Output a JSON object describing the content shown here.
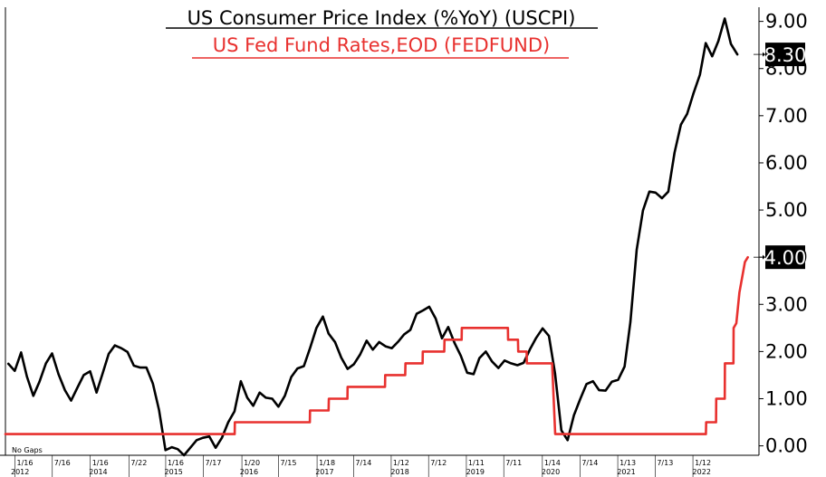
{
  "chart_data": {
    "type": "line",
    "title": "US Consumer Price Index (%YoY) (USCPI)",
    "subtitle": "US Fed Fund Rates,EOD (FEDFUND)",
    "note": "No Gaps",
    "ylim": [
      -0.2,
      9.3
    ],
    "yticks": [
      "9.00",
      "8.00",
      "7.00",
      "6.00",
      "5.00",
      "4.00",
      "3.00",
      "2.00",
      "1.00",
      "0.00"
    ],
    "x_range": [
      "2012-12-01",
      "2022-10-15"
    ],
    "x_ticks_md": [
      {
        "label": "1/16",
        "date": "2013-01-16"
      },
      {
        "label": "7/16",
        "date": "2013-07-16"
      },
      {
        "label": "1/16",
        "date": "2014-01-16"
      },
      {
        "label": "7/22",
        "date": "2014-07-22"
      },
      {
        "label": "1/16",
        "date": "2015-01-16"
      },
      {
        "label": "7/17",
        "date": "2015-07-17"
      },
      {
        "label": "1/20",
        "date": "2016-01-20"
      },
      {
        "label": "7/15",
        "date": "2016-07-15"
      },
      {
        "label": "1/18",
        "date": "2017-01-18"
      },
      {
        "label": "7/14",
        "date": "2017-07-14"
      },
      {
        "label": "1/12",
        "date": "2018-01-12"
      },
      {
        "label": "7/12",
        "date": "2018-07-12"
      },
      {
        "label": "1/11",
        "date": "2019-01-11"
      },
      {
        "label": "7/11",
        "date": "2019-07-11"
      },
      {
        "label": "1/14",
        "date": "2020-01-14"
      },
      {
        "label": "7/14",
        "date": "2020-07-14"
      },
      {
        "label": "1/13",
        "date": "2021-01-13"
      },
      {
        "label": "7/13",
        "date": "2021-07-13"
      },
      {
        "label": "1/12",
        "date": "2022-01-12"
      }
    ],
    "x_ticks_year": [
      {
        "label": "2012",
        "date": "2012-12-01"
      },
      {
        "label": "2014",
        "date": "2014-01-01"
      },
      {
        "label": "2015",
        "date": "2015-01-01"
      },
      {
        "label": "2016",
        "date": "2016-01-01"
      },
      {
        "label": "2017",
        "date": "2017-01-01"
      },
      {
        "label": "2018",
        "date": "2018-01-01"
      },
      {
        "label": "2019",
        "date": "2019-01-01"
      },
      {
        "label": "2020",
        "date": "2020-01-01"
      },
      {
        "label": "2021",
        "date": "2021-01-01"
      },
      {
        "label": "2022",
        "date": "2022-01-01"
      }
    ],
    "series": [
      {
        "name": "US Consumer Price Index (%YoY) (USCPI)",
        "color": "#000000",
        "last_label": "8.30",
        "points": [
          [
            "2012-12-15",
            1.74
          ],
          [
            "2013-01-15",
            1.59
          ],
          [
            "2013-02-15",
            1.98
          ],
          [
            "2013-03-15",
            1.47
          ],
          [
            "2013-04-15",
            1.06
          ],
          [
            "2013-05-15",
            1.36
          ],
          [
            "2013-06-15",
            1.75
          ],
          [
            "2013-07-15",
            1.96
          ],
          [
            "2013-08-15",
            1.52
          ],
          [
            "2013-09-15",
            1.18
          ],
          [
            "2013-10-15",
            0.96
          ],
          [
            "2013-11-15",
            1.24
          ],
          [
            "2013-12-15",
            1.5
          ],
          [
            "2014-01-15",
            1.58
          ],
          [
            "2014-02-15",
            1.13
          ],
          [
            "2014-03-15",
            1.51
          ],
          [
            "2014-04-15",
            1.95
          ],
          [
            "2014-05-15",
            2.13
          ],
          [
            "2014-06-15",
            2.07
          ],
          [
            "2014-07-15",
            1.99
          ],
          [
            "2014-08-15",
            1.7
          ],
          [
            "2014-09-15",
            1.66
          ],
          [
            "2014-10-15",
            1.66
          ],
          [
            "2014-11-15",
            1.32
          ],
          [
            "2014-12-15",
            0.76
          ],
          [
            "2015-01-15",
            -0.09
          ],
          [
            "2015-02-15",
            -0.03
          ],
          [
            "2015-03-15",
            -0.07
          ],
          [
            "2015-04-15",
            -0.2
          ],
          [
            "2015-05-15",
            -0.04
          ],
          [
            "2015-06-15",
            0.12
          ],
          [
            "2015-07-15",
            0.17
          ],
          [
            "2015-08-15",
            0.2
          ],
          [
            "2015-09-15",
            -0.04
          ],
          [
            "2015-10-15",
            0.17
          ],
          [
            "2015-11-15",
            0.5
          ],
          [
            "2015-12-15",
            0.73
          ],
          [
            "2016-01-15",
            1.37
          ],
          [
            "2016-02-15",
            1.02
          ],
          [
            "2016-03-15",
            0.85
          ],
          [
            "2016-04-15",
            1.13
          ],
          [
            "2016-05-15",
            1.02
          ],
          [
            "2016-06-15",
            1.0
          ],
          [
            "2016-07-15",
            0.83
          ],
          [
            "2016-08-15",
            1.06
          ],
          [
            "2016-09-15",
            1.46
          ],
          [
            "2016-10-15",
            1.64
          ],
          [
            "2016-11-15",
            1.69
          ],
          [
            "2016-12-15",
            2.07
          ],
          [
            "2017-01-15",
            2.5
          ],
          [
            "2017-02-15",
            2.74
          ],
          [
            "2017-03-15",
            2.38
          ],
          [
            "2017-04-15",
            2.2
          ],
          [
            "2017-05-15",
            1.87
          ],
          [
            "2017-06-15",
            1.63
          ],
          [
            "2017-07-15",
            1.73
          ],
          [
            "2017-08-15",
            1.94
          ],
          [
            "2017-09-15",
            2.23
          ],
          [
            "2017-10-15",
            2.04
          ],
          [
            "2017-11-15",
            2.2
          ],
          [
            "2017-12-15",
            2.11
          ],
          [
            "2018-01-15",
            2.07
          ],
          [
            "2018-02-15",
            2.21
          ],
          [
            "2018-03-15",
            2.36
          ],
          [
            "2018-04-15",
            2.46
          ],
          [
            "2018-05-15",
            2.8
          ],
          [
            "2018-06-15",
            2.87
          ],
          [
            "2018-07-15",
            2.95
          ],
          [
            "2018-08-15",
            2.7
          ],
          [
            "2018-09-15",
            2.28
          ],
          [
            "2018-10-15",
            2.52
          ],
          [
            "2018-11-15",
            2.18
          ],
          [
            "2018-12-15",
            1.91
          ],
          [
            "2019-01-15",
            1.55
          ],
          [
            "2019-02-15",
            1.52
          ],
          [
            "2019-03-15",
            1.86
          ],
          [
            "2019-04-15",
            2.0
          ],
          [
            "2019-05-15",
            1.79
          ],
          [
            "2019-06-15",
            1.65
          ],
          [
            "2019-07-15",
            1.81
          ],
          [
            "2019-08-15",
            1.75
          ],
          [
            "2019-09-15",
            1.71
          ],
          [
            "2019-10-15",
            1.76
          ],
          [
            "2019-11-15",
            2.05
          ],
          [
            "2019-12-15",
            2.29
          ],
          [
            "2020-01-15",
            2.49
          ],
          [
            "2020-02-15",
            2.33
          ],
          [
            "2020-03-15",
            1.54
          ],
          [
            "2020-04-15",
            0.33
          ],
          [
            "2020-05-15",
            0.12
          ],
          [
            "2020-06-15",
            0.65
          ],
          [
            "2020-07-15",
            0.99
          ],
          [
            "2020-08-15",
            1.31
          ],
          [
            "2020-09-15",
            1.37
          ],
          [
            "2020-10-15",
            1.18
          ],
          [
            "2020-11-15",
            1.17
          ],
          [
            "2020-12-15",
            1.36
          ],
          [
            "2021-01-15",
            1.4
          ],
          [
            "2021-02-15",
            1.68
          ],
          [
            "2021-03-15",
            2.62
          ],
          [
            "2021-04-15",
            4.16
          ],
          [
            "2021-05-15",
            4.99
          ],
          [
            "2021-06-15",
            5.39
          ],
          [
            "2021-07-15",
            5.37
          ],
          [
            "2021-08-15",
            5.25
          ],
          [
            "2021-09-15",
            5.39
          ],
          [
            "2021-10-15",
            6.22
          ],
          [
            "2021-11-15",
            6.81
          ],
          [
            "2021-12-15",
            7.04
          ],
          [
            "2022-01-15",
            7.48
          ],
          [
            "2022-02-15",
            7.87
          ],
          [
            "2022-03-15",
            8.54
          ],
          [
            "2022-04-15",
            8.26
          ],
          [
            "2022-05-15",
            8.58
          ],
          [
            "2022-06-15",
            9.06
          ],
          [
            "2022-07-15",
            8.52
          ],
          [
            "2022-08-15",
            8.3
          ]
        ]
      },
      {
        "name": "US Fed Fund Rates,EOD (FEDFUND)",
        "color": "#e8312f",
        "last_label": "4.00",
        "points": [
          [
            "2012-12-01",
            0.25
          ],
          [
            "2015-12-16",
            0.25
          ],
          [
            "2015-12-17",
            0.5
          ],
          [
            "2016-12-14",
            0.5
          ],
          [
            "2016-12-15",
            0.75
          ],
          [
            "2017-03-15",
            0.75
          ],
          [
            "2017-03-16",
            1.0
          ],
          [
            "2017-06-14",
            1.0
          ],
          [
            "2017-06-15",
            1.25
          ],
          [
            "2017-12-13",
            1.25
          ],
          [
            "2017-12-14",
            1.5
          ],
          [
            "2018-03-21",
            1.5
          ],
          [
            "2018-03-22",
            1.75
          ],
          [
            "2018-06-13",
            1.75
          ],
          [
            "2018-06-14",
            2.0
          ],
          [
            "2018-09-26",
            2.0
          ],
          [
            "2018-09-27",
            2.25
          ],
          [
            "2018-12-19",
            2.25
          ],
          [
            "2018-12-20",
            2.5
          ],
          [
            "2019-07-31",
            2.5
          ],
          [
            "2019-08-01",
            2.25
          ],
          [
            "2019-09-18",
            2.25
          ],
          [
            "2019-09-19",
            2.0
          ],
          [
            "2019-10-30",
            2.0
          ],
          [
            "2019-10-31",
            1.75
          ],
          [
            "2020-03-01",
            1.75
          ],
          [
            "2020-03-16",
            0.25
          ],
          [
            "2022-03-16",
            0.25
          ],
          [
            "2022-03-17",
            0.5
          ],
          [
            "2022-05-04",
            0.5
          ],
          [
            "2022-05-05",
            1.0
          ],
          [
            "2022-06-15",
            1.0
          ],
          [
            "2022-06-16",
            1.75
          ],
          [
            "2022-07-27",
            1.75
          ],
          [
            "2022-07-28",
            2.5
          ],
          [
            "2022-08-10",
            2.6
          ],
          [
            "2022-08-25",
            3.25
          ],
          [
            "2022-09-21",
            3.9
          ],
          [
            "2022-10-05",
            4.0
          ]
        ]
      }
    ]
  }
}
